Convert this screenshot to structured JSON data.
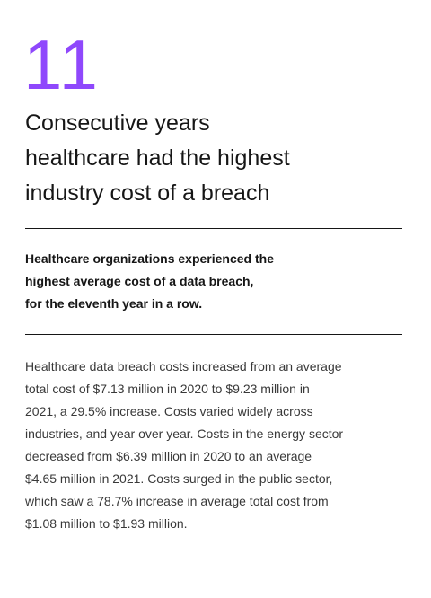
{
  "stat": {
    "number": "11",
    "headline_lines": [
      "Consecutive years",
      "healthcare had the highest",
      "industry cost of a breach"
    ]
  },
  "summary": {
    "lines": [
      "Healthcare organizations experienced the",
      "highest average cost of a data breach,",
      "for the eleventh year in a row."
    ]
  },
  "body": {
    "lines": [
      "Healthcare data breach costs increased from an average",
      "total cost of $7.13 million in 2020 to $9.23 million in",
      "2021, a 29.5% increase. Costs varied widely across",
      "industries, and year over year. Costs in the energy sector",
      "decreased from $6.39 million in 2020 to an average",
      "$4.65 million in 2021. Costs surged in the public sector,",
      "which saw a 78.7% increase in average total cost from",
      "$1.08 million to $1.93 million."
    ]
  },
  "colors": {
    "accent": "#8a3ffc",
    "text": "#161616",
    "body_text": "#393939",
    "background": "#ffffff"
  }
}
